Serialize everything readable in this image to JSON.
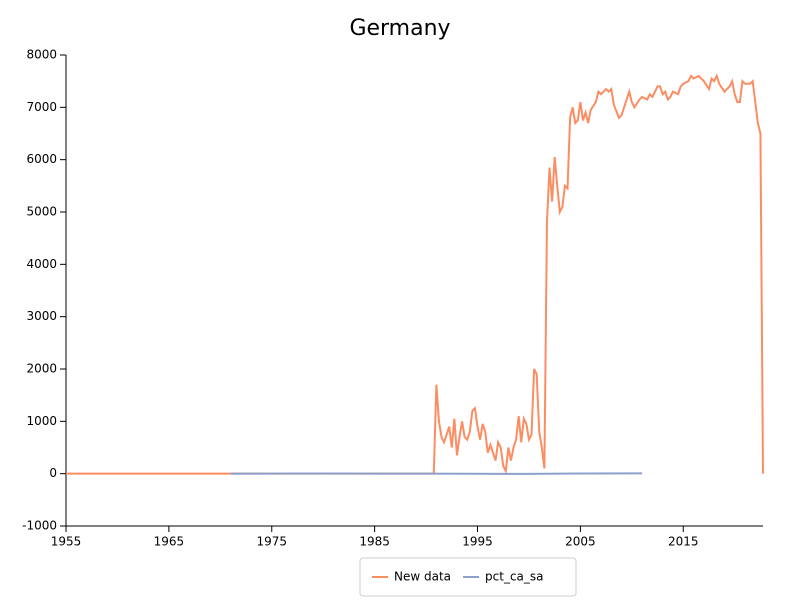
{
  "chart_data": {
    "type": "line",
    "title": "Germany",
    "xlim": [
      1955,
      2022.75
    ],
    "xticks": [
      1955,
      1965,
      1975,
      1985,
      1995,
      2005,
      2015
    ],
    "ylim": [
      -1000,
      8000
    ],
    "yticks": [
      -1000,
      0,
      1000,
      2000,
      3000,
      4000,
      5000,
      6000,
      7000,
      8000
    ],
    "grid": false,
    "legend": "bottom",
    "series": [
      {
        "name": "New data",
        "color": "#fc8d62",
        "x": [
          1955,
          1990.75,
          1991,
          1991.25,
          1991.5,
          1991.75,
          1992,
          1992.25,
          1992.5,
          1992.75,
          1993,
          1993.25,
          1993.5,
          1993.75,
          1994,
          1994.25,
          1994.5,
          1994.75,
          1995,
          1995.25,
          1995.5,
          1995.75,
          1996,
          1996.25,
          1996.5,
          1996.75,
          1997,
          1997.25,
          1997.5,
          1997.75,
          1998,
          1998.25,
          1998.5,
          1998.75,
          1999,
          1999.25,
          1999.5,
          1999.75,
          2000,
          2000.25,
          2000.5,
          2000.75,
          2001,
          2001.25,
          2001.5,
          2001.75,
          2002,
          2002.25,
          2002.5,
          2002.75,
          2003,
          2003.25,
          2003.5,
          2003.75,
          2004,
          2004.25,
          2004.5,
          2004.75,
          2005,
          2005.25,
          2005.5,
          2005.75,
          2006,
          2006.5,
          2006.75,
          2007,
          2007.5,
          2007.75,
          2008,
          2008.25,
          2008.75,
          2009,
          2009.5,
          2009.75,
          2010,
          2010.25,
          2010.75,
          2011,
          2011.5,
          2011.75,
          2012,
          2012.5,
          2012.75,
          2013,
          2013.25,
          2013.5,
          2013.75,
          2014,
          2014.5,
          2014.75,
          2015,
          2015.5,
          2015.75,
          2016,
          2016.5,
          2017,
          2017.5,
          2017.75,
          2018,
          2018.25,
          2018.5,
          2019,
          2019.5,
          2019.75,
          2020,
          2020.25,
          2020.5,
          2020.75,
          2021,
          2021.5,
          2021.75,
          2022,
          2022.25,
          2022.5,
          2022.75
        ],
        "values": [
          0,
          0,
          1700,
          1000,
          700,
          600,
          750,
          900,
          500,
          1050,
          350,
          700,
          1000,
          700,
          650,
          800,
          1200,
          1250,
          900,
          650,
          950,
          800,
          400,
          550,
          400,
          250,
          600,
          500,
          150,
          50,
          500,
          250,
          500,
          650,
          1100,
          600,
          1050,
          950,
          650,
          750,
          2000,
          1900,
          800,
          500,
          100,
          4800,
          5850,
          5200,
          6050,
          5500,
          5000,
          5100,
          5500,
          5450,
          6800,
          7000,
          6700,
          6750,
          7100,
          6750,
          6900,
          6700,
          6950,
          7100,
          7300,
          7250,
          7350,
          7300,
          7350,
          7050,
          6800,
          6850,
          7150,
          7300,
          7100,
          7000,
          7150,
          7200,
          7150,
          7250,
          7200,
          7400,
          7400,
          7250,
          7300,
          7150,
          7200,
          7300,
          7250,
          7400,
          7450,
          7500,
          7600,
          7550,
          7600,
          7500,
          7350,
          7550,
          7500,
          7600,
          7450,
          7300,
          7400,
          7500,
          7250,
          7100,
          7100,
          7500,
          7450,
          7450,
          7500,
          7100,
          6700,
          6500,
          0
        ]
      },
      {
        "name": "pct_ca_sa",
        "color": "#8da0cb",
        "x": [
          1971,
          1980,
          1990,
          2000,
          2005,
          2011
        ],
        "values": [
          1,
          2,
          0,
          -5,
          3,
          5
        ]
      }
    ]
  }
}
